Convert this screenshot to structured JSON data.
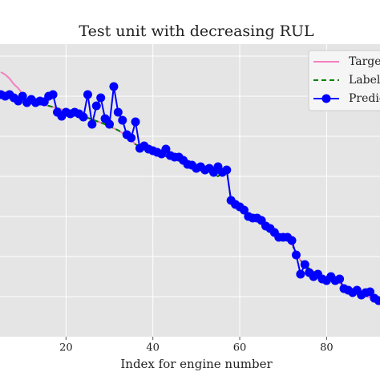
{
  "chart_data": {
    "type": "line",
    "title": "Test unit with decreasing RUL",
    "xlabel": "Index for engine number",
    "x": [
      5,
      6,
      7,
      8,
      9,
      10,
      11,
      12,
      13,
      14,
      15,
      16,
      17,
      18,
      19,
      20,
      21,
      22,
      23,
      24,
      25,
      26,
      27,
      28,
      29,
      30,
      31,
      32,
      33,
      34,
      35,
      36,
      37,
      38,
      39,
      40,
      41,
      42,
      43,
      44,
      45,
      46,
      47,
      48,
      49,
      50,
      51,
      52,
      53,
      54,
      55,
      56,
      57,
      58,
      59,
      60,
      61,
      62,
      63,
      64,
      65,
      66,
      67,
      68,
      69,
      70,
      71,
      72,
      73,
      74,
      75,
      76,
      77,
      78,
      79,
      80,
      81,
      82,
      83,
      84,
      85,
      86,
      87,
      88,
      89,
      90,
      91,
      92
    ],
    "series": [
      {
        "name": "Targe",
        "color": "#f47fbf",
        "linestyle": "solid",
        "marker": false,
        "values": [
          6.6,
          6.54,
          6.44,
          6.3,
          6.2,
          6.05,
          5.87,
          5.85,
          5.82,
          5.8,
          5.78,
          5.76,
          5.73,
          5.7,
          5.67,
          5.64,
          5.6,
          5.57,
          5.53,
          5.5,
          5.46,
          5.42,
          5.38,
          5.34,
          5.3,
          5.25,
          5.2,
          5.15,
          5.08,
          5.0,
          4.9,
          4.8,
          4.74,
          4.7,
          4.66,
          4.62,
          4.58,
          4.54,
          4.5,
          4.47,
          4.44,
          4.4,
          4.36,
          4.32,
          4.28,
          4.24,
          4.2,
          4.16,
          4.12,
          4.06,
          4.0,
          4.1,
          4.14,
          3.4,
          3.3,
          3.2,
          3.12,
          3.04,
          2.98,
          2.92,
          2.86,
          2.78,
          2.7,
          2.62,
          2.54,
          2.5,
          2.46,
          2.3,
          2.1,
          1.9,
          1.8,
          1.7,
          1.62,
          1.56,
          1.5,
          1.46,
          1.42,
          1.38,
          1.34,
          1.26,
          1.2,
          1.15,
          1.1,
          1.06,
          1.02,
          0.98,
          0.94,
          0.9
        ]
      },
      {
        "name": "Label",
        "color": "#008000",
        "linestyle": "dashed",
        "marker": false,
        "values": [
          6.02,
          6.0,
          5.98,
          5.95,
          5.92,
          5.9,
          5.87,
          5.85,
          5.82,
          5.8,
          5.78,
          5.76,
          5.73,
          5.7,
          5.67,
          5.64,
          5.6,
          5.57,
          5.53,
          5.5,
          5.46,
          5.42,
          5.38,
          5.34,
          5.3,
          5.25,
          5.2,
          5.15,
          5.08,
          5.0,
          4.9,
          4.8,
          4.74,
          4.7,
          4.66,
          4.62,
          4.58,
          4.54,
          4.5,
          4.47,
          4.44,
          4.4,
          4.36,
          4.32,
          4.28,
          4.24,
          4.2,
          4.16,
          4.12,
          4.06,
          4.0,
          4.1,
          4.14,
          3.4,
          3.3,
          3.2,
          3.12,
          3.04,
          2.98,
          2.92,
          2.86,
          2.78,
          2.7,
          2.62,
          2.54,
          2.5,
          2.46,
          2.3,
          2.1,
          1.9,
          1.8,
          1.7,
          1.62,
          1.56,
          1.5,
          1.46,
          1.42,
          1.38,
          1.34,
          1.26,
          1.2,
          1.15,
          1.1,
          1.06,
          1.02,
          0.98,
          0.94,
          0.9
        ]
      },
      {
        "name": "Predic",
        "color": "#0000ff",
        "linestyle": "solid",
        "marker": true,
        "values": [
          6.04,
          6.0,
          6.04,
          5.96,
          5.88,
          6.0,
          5.84,
          5.92,
          5.84,
          5.88,
          5.86,
          6.0,
          6.04,
          5.6,
          5.5,
          5.6,
          5.56,
          5.6,
          5.56,
          5.48,
          6.04,
          5.3,
          5.76,
          5.96,
          5.44,
          5.3,
          6.24,
          5.6,
          5.4,
          5.04,
          4.96,
          5.36,
          4.7,
          4.76,
          4.68,
          4.64,
          4.6,
          4.56,
          4.68,
          4.52,
          4.48,
          4.48,
          4.4,
          4.3,
          4.28,
          4.2,
          4.24,
          4.16,
          4.2,
          4.1,
          4.24,
          4.1,
          4.16,
          3.4,
          3.3,
          3.24,
          3.16,
          3.0,
          2.96,
          2.96,
          2.9,
          2.76,
          2.7,
          2.6,
          2.48,
          2.48,
          2.48,
          2.4,
          2.04,
          1.56,
          1.8,
          1.6,
          1.5,
          1.56,
          1.44,
          1.4,
          1.5,
          1.4,
          1.44,
          1.2,
          1.16,
          1.1,
          1.16,
          1.04,
          1.1,
          1.12,
          0.96,
          0.9
        ]
      }
    ],
    "xlim": [
      4.8,
      92.3
    ],
    "xticks": [
      20,
      40,
      60,
      80
    ],
    "ylim": [
      0,
      7.3
    ],
    "ygrid": [
      1,
      2,
      3,
      4,
      5,
      6,
      7
    ],
    "grid": true,
    "legend": "upper right"
  }
}
